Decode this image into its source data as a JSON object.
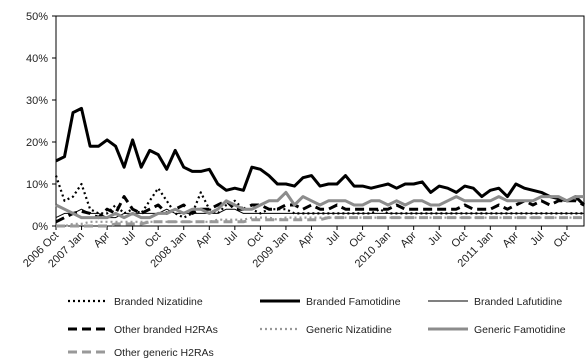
{
  "chart_data": {
    "type": "line",
    "ylim": [
      0,
      50
    ],
    "y_ticks": [
      "0%",
      "10%",
      "20%",
      "30%",
      "40%",
      "50%"
    ],
    "y_tick_values": [
      0,
      10,
      20,
      30,
      40,
      50
    ],
    "x_tick_labels": [
      "2006 Oct",
      "2007 Jan",
      "Apr",
      "Jul",
      "Oct",
      "2008 Jan",
      "Apr",
      "Jul",
      "Oct",
      "2009 Jan",
      "Apr",
      "Jul",
      "Oct",
      "2010 Jan",
      "Apr",
      "Jul",
      "Oct",
      "2011 Jan",
      "Apr",
      "Jul",
      "Oct"
    ],
    "x_tick_index": [
      0,
      3,
      6,
      9,
      12,
      15,
      18,
      21,
      24,
      27,
      30,
      33,
      36,
      39,
      42,
      45,
      48,
      51,
      54,
      57,
      60
    ],
    "n_points": 63,
    "grid": false,
    "legend_position": "bottom",
    "series": [
      {
        "name": "Branded Nizatidine",
        "color": "#000000",
        "style": "dotted",
        "values": [
          12,
          6,
          7,
          10,
          4,
          3,
          3,
          5,
          3,
          4,
          3,
          6,
          9,
          6,
          3,
          2,
          3,
          8,
          4,
          3,
          5,
          6,
          4,
          4,
          3,
          4,
          4,
          4,
          3,
          3,
          3,
          3,
          3,
          3,
          3,
          3,
          3,
          3,
          4,
          3,
          3,
          3,
          3,
          3,
          3,
          3,
          3,
          3,
          3,
          3,
          3,
          3,
          3,
          3,
          3,
          3,
          3,
          3,
          3,
          3,
          3,
          3,
          3
        ]
      },
      {
        "name": "Branded Famotidine",
        "color": "#000000",
        "style": "solid-thick",
        "values": [
          15.5,
          16.5,
          27,
          28,
          19,
          19,
          20.5,
          19,
          14,
          20.5,
          14,
          18,
          17,
          13.5,
          18,
          14,
          13,
          13,
          13.5,
          10,
          8.5,
          9,
          8.5,
          14,
          13.5,
          12,
          10,
          10,
          9.5,
          11.5,
          12,
          9.5,
          10,
          10,
          12,
          9.5,
          9.5,
          9,
          9.5,
          10,
          9,
          10,
          10,
          10.5,
          8,
          9.5,
          9,
          8,
          9.5,
          9,
          7,
          8.5,
          9,
          7,
          10,
          9,
          8.5,
          8,
          7,
          6.5,
          6,
          7,
          5
        ]
      },
      {
        "name": "Branded Lafutidine",
        "color": "#000000",
        "style": "solid-thin",
        "values": [
          2,
          3,
          3,
          4,
          3,
          3,
          2,
          2,
          3,
          3,
          3,
          3,
          3,
          4,
          3,
          3,
          3,
          3,
          3,
          3,
          4,
          4,
          3,
          3,
          3,
          3,
          3,
          3,
          3,
          3,
          3,
          3,
          3,
          3,
          3,
          3,
          3,
          3,
          3,
          3,
          3,
          3,
          3,
          3,
          3,
          3,
          3,
          3,
          3,
          3,
          3,
          3,
          3,
          3,
          3,
          3,
          3,
          3,
          3,
          3,
          3,
          3,
          3
        ]
      },
      {
        "name": "Other branded H2RAs",
        "color": "#000000",
        "style": "dashed-thick",
        "values": [
          1,
          2,
          3,
          3.5,
          3,
          2,
          4,
          3,
          7,
          4,
          3,
          4,
          5,
          3,
          4,
          5,
          3,
          4,
          4,
          5,
          6,
          4,
          4,
          5,
          5,
          4,
          4,
          5,
          5,
          4,
          5,
          4,
          4,
          5,
          4,
          4,
          4,
          4,
          4,
          4,
          5,
          4,
          4,
          4,
          4,
          4,
          4,
          4,
          5,
          4,
          4,
          4,
          5,
          4,
          5,
          6,
          5,
          6,
          5,
          6,
          6,
          6,
          5
        ]
      },
      {
        "name": "Generic Nizatidine",
        "color": "#999999",
        "style": "dotted",
        "values": [
          0,
          0,
          0.5,
          0.5,
          1,
          1,
          1,
          1,
          1,
          1,
          1,
          1,
          1,
          1,
          1,
          1,
          1,
          1,
          1,
          1.5,
          1.5,
          1.5,
          1.5,
          2,
          2,
          2,
          1.5,
          2,
          2,
          2,
          2,
          2,
          2,
          2,
          2,
          2,
          2,
          2,
          2,
          2,
          2,
          2,
          2,
          2,
          2,
          2,
          2,
          2,
          2,
          2,
          2,
          2,
          2,
          2,
          2,
          2,
          2,
          2,
          2,
          2,
          2,
          2,
          2
        ]
      },
      {
        "name": "Generic Famotidine",
        "color": "#8c8c8c",
        "style": "solid-thick",
        "values": [
          5,
          4,
          3,
          2,
          2,
          2,
          2,
          3,
          2,
          3,
          2,
          2,
          3,
          3,
          4,
          3,
          4,
          4,
          3,
          4,
          6,
          5,
          4,
          4,
          5,
          6,
          6,
          8,
          5,
          7,
          6,
          5,
          6,
          6,
          6,
          5,
          5,
          6,
          6,
          5,
          6,
          5,
          6,
          6,
          5,
          5,
          6,
          7,
          6,
          6,
          6,
          6,
          7,
          6,
          6,
          6,
          6,
          7,
          7,
          7,
          6,
          7,
          7
        ]
      },
      {
        "name": "Other generic H2RAs",
        "color": "#999999",
        "style": "dashed-thick",
        "values": [
          0,
          0,
          0,
          0,
          0,
          0,
          0,
          0.5,
          0.5,
          0.5,
          0.5,
          1,
          1,
          1,
          1,
          1,
          1,
          1,
          1,
          1,
          1,
          1,
          1,
          1.5,
          1.5,
          1.5,
          1.5,
          1.5,
          1.5,
          1.5,
          1.5,
          1.5,
          2,
          2,
          2,
          2,
          2,
          2,
          2,
          2,
          2,
          2,
          2,
          2,
          2,
          2,
          2,
          2,
          2,
          2,
          2,
          2,
          2,
          2,
          2,
          2,
          2,
          2,
          2,
          2,
          2,
          2,
          2
        ]
      }
    ]
  }
}
